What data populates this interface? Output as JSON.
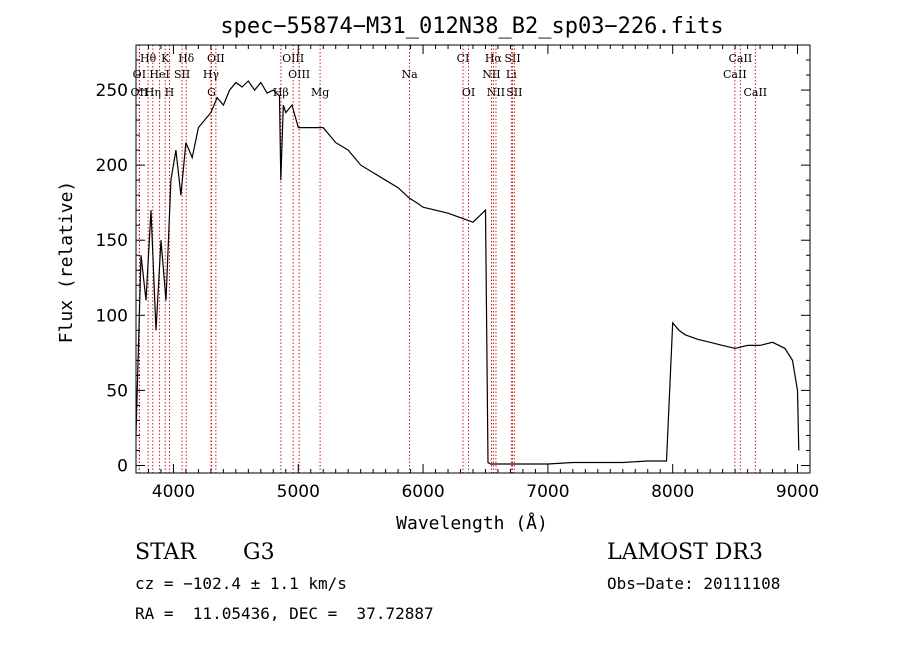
{
  "chart_data": {
    "type": "line",
    "title": "spec−55874−M31_012N38_B2_sp03−226.fits",
    "xlabel": "Wavelength (Å)",
    "ylabel": "Flux (relative)",
    "xlim": [
      3700,
      9100
    ],
    "ylim": [
      -5,
      280
    ],
    "xticks": [
      4000,
      5000,
      6000,
      7000,
      8000,
      9000
    ],
    "yticks": [
      0,
      50,
      100,
      150,
      200,
      250
    ],
    "grid": false,
    "line_color": "#000000",
    "marker_color": "#cc0000",
    "series": [
      {
        "name": "Flux",
        "x": [
          3700,
          3740,
          3780,
          3820,
          3860,
          3900,
          3940,
          3980,
          4020,
          4060,
          4100,
          4150,
          4200,
          4250,
          4300,
          4350,
          4400,
          4450,
          4500,
          4550,
          4600,
          4650,
          4700,
          4750,
          4800,
          4850,
          4860,
          4880,
          4900,
          4950,
          5000,
          5100,
          5200,
          5300,
          5400,
          5500,
          5600,
          5700,
          5800,
          5890,
          5950,
          6000,
          6100,
          6200,
          6300,
          6400,
          6500,
          6520,
          6540,
          6600,
          6800,
          7000,
          7200,
          7400,
          7600,
          7800,
          7920,
          7950,
          8000,
          8050,
          8100,
          8200,
          8300,
          8400,
          8500,
          8600,
          8700,
          8800,
          8900,
          8960,
          9000,
          9010
        ],
        "y": [
          20,
          140,
          110,
          170,
          90,
          150,
          110,
          190,
          210,
          180,
          215,
          205,
          225,
          230,
          235,
          245,
          240,
          250,
          255,
          252,
          256,
          250,
          255,
          248,
          250,
          246,
          190,
          240,
          235,
          240,
          225,
          225,
          225,
          215,
          210,
          200,
          195,
          190,
          185,
          178,
          175,
          172,
          170,
          168,
          165,
          162,
          170,
          2,
          1,
          1,
          1,
          1,
          2,
          2,
          2,
          3,
          3,
          3,
          95,
          90,
          87,
          84,
          82,
          80,
          78,
          80,
          80,
          82,
          78,
          70,
          50,
          10
        ]
      }
    ],
    "line_markers": [
      {
        "label": "Hθ",
        "x": 3797,
        "row": 0
      },
      {
        "label": "K",
        "x": 3934,
        "row": 0
      },
      {
        "label": "Hδ",
        "x": 4102,
        "row": 0
      },
      {
        "label": "OII",
        "x": 4340,
        "row": 0
      },
      {
        "label": "OIII",
        "x": 4959,
        "row": 0
      },
      {
        "label": "CI",
        "x": 6320,
        "row": 0
      },
      {
        "label": "Hα",
        "x": 6563,
        "row": 0
      },
      {
        "label": "SII",
        "x": 6717,
        "row": 0
      },
      {
        "label": "CaII",
        "x": 8542,
        "row": 0
      },
      {
        "label": "OI",
        "x": 3727,
        "row": 1
      },
      {
        "label": "HeI",
        "x": 3889,
        "row": 1
      },
      {
        "label": "SII",
        "x": 4069,
        "row": 1
      },
      {
        "label": "Hγ",
        "x": 4301,
        "row": 1
      },
      {
        "label": "OIII",
        "x": 5007,
        "row": 1
      },
      {
        "label": "Na",
        "x": 5892,
        "row": 1
      },
      {
        "label": "NII",
        "x": 6548,
        "row": 1
      },
      {
        "label": "Li",
        "x": 6707,
        "row": 1
      },
      {
        "label": "CaII",
        "x": 8498,
        "row": 1
      },
      {
        "label": "OII",
        "x": 3727,
        "row": 2
      },
      {
        "label": "Hη",
        "x": 3835,
        "row": 2
      },
      {
        "label": "H",
        "x": 3968,
        "row": 2
      },
      {
        "label": "G",
        "x": 4305,
        "row": 2
      },
      {
        "label": "Hβ",
        "x": 4861,
        "row": 2
      },
      {
        "label": "Mg",
        "x": 5175,
        "row": 2
      },
      {
        "label": "OI",
        "x": 6364,
        "row": 2
      },
      {
        "label": "NII",
        "x": 6584,
        "row": 2
      },
      {
        "label": "SII",
        "x": 6731,
        "row": 2
      },
      {
        "label": "CaII",
        "x": 8662,
        "row": 2
      }
    ]
  },
  "info": {
    "object_class": "STAR",
    "subclass": "G3",
    "survey": "LAMOST DR3",
    "cz": "cz = −102.4 ± 1.1 km/s",
    "obs_date": "Obs−Date: 20111108",
    "coords": "RA =  11.05436, DEC =  37.72887"
  }
}
